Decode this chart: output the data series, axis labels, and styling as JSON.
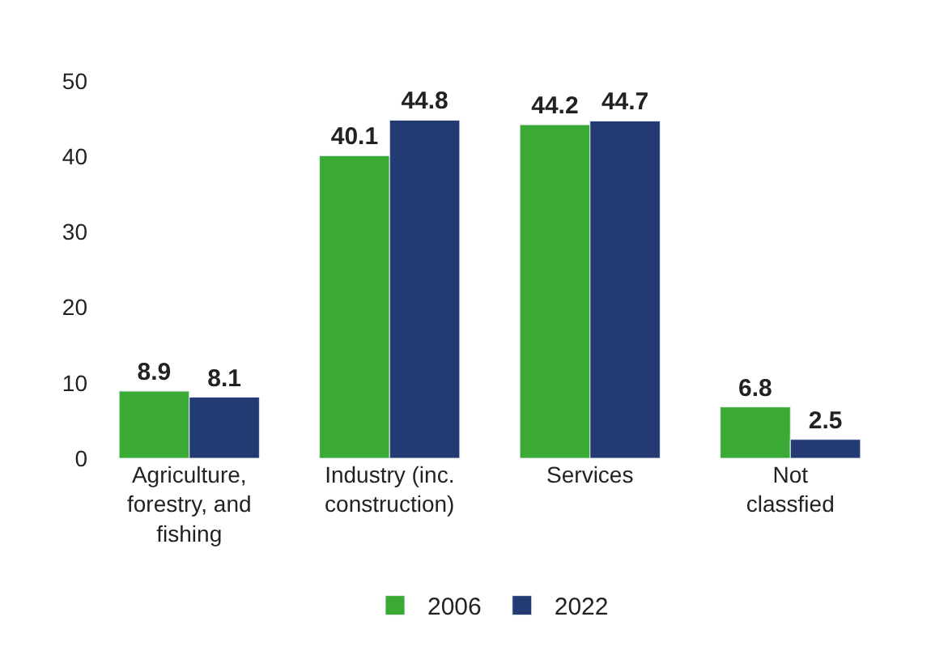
{
  "chart_data": {
    "type": "bar",
    "categories": [
      "Agriculture,\nforestry, and\nfishing",
      "Industry (inc.\nconstruction)",
      "Services",
      "Not\nclassfied"
    ],
    "series": [
      {
        "name": "2006",
        "color": "#3aaa35",
        "values": [
          8.9,
          40.1,
          44.2,
          6.8
        ]
      },
      {
        "name": "2022",
        "color": "#243a73",
        "values": [
          8.1,
          44.8,
          44.7,
          2.5
        ]
      }
    ],
    "ylim": [
      0,
      50
    ],
    "yticks": [
      0,
      10,
      20,
      30,
      40,
      50
    ],
    "data_labels": true,
    "legend": "bottom"
  }
}
